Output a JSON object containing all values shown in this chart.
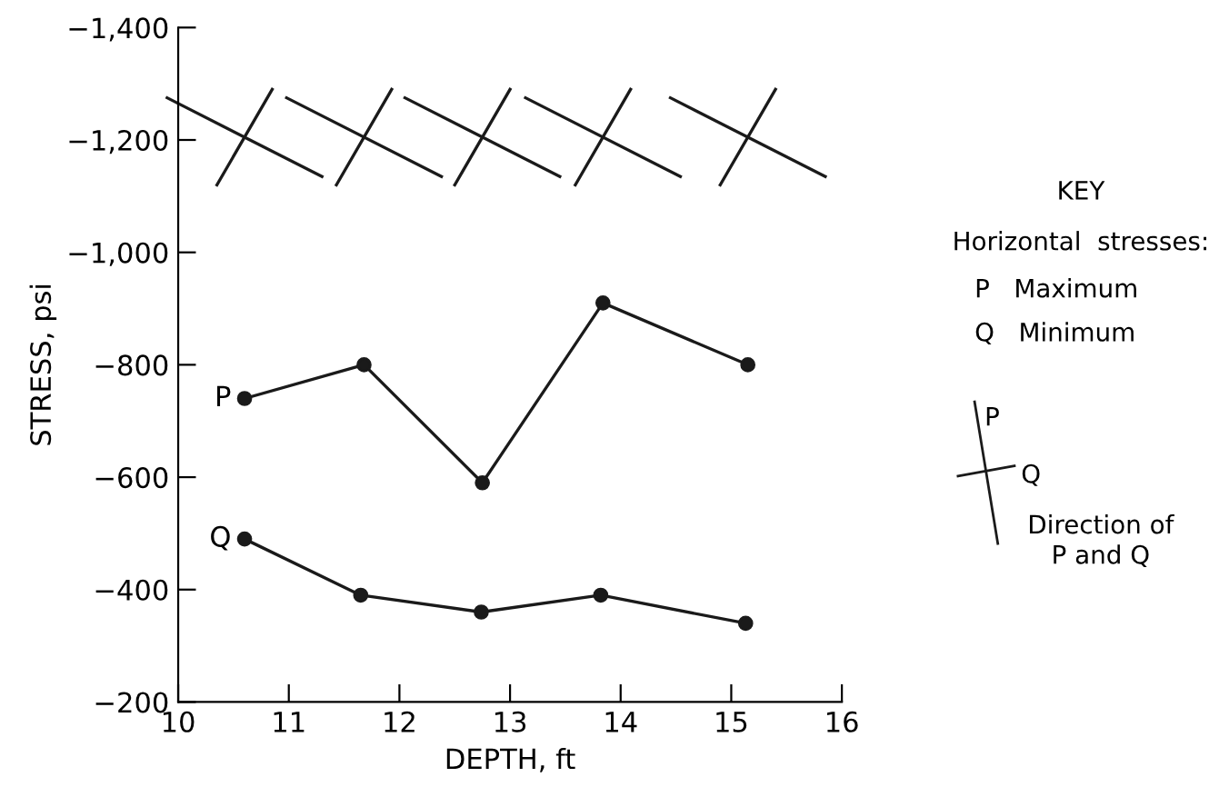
{
  "chart_data": {
    "type": "line",
    "xlabel": "DEPTH, ft",
    "ylabel": "STRESS, psi",
    "series": [
      {
        "name": "P",
        "color": "#1a1a1a",
        "x": [
          10.6,
          11.68,
          12.75,
          13.84,
          15.15
        ],
        "values": [
          -740,
          -800,
          -590,
          -910,
          -800
        ]
      },
      {
        "name": "Q",
        "color": "#1a1a1a",
        "x": [
          10.6,
          11.65,
          12.74,
          13.82,
          15.13
        ],
        "values": [
          -490,
          -390,
          -360,
          -390,
          -340
        ]
      }
    ],
    "xlim": [
      10,
      16
    ],
    "xticks": [
      10,
      11,
      12,
      13,
      14,
      15,
      16
    ],
    "ylim": [
      -200,
      -1400
    ],
    "yticks": [
      {
        "value": -200,
        "label": "−200"
      },
      {
        "value": -400,
        "label": "−400"
      },
      {
        "value": -600,
        "label": "−600"
      },
      {
        "value": -800,
        "label": "−800"
      },
      {
        "value": -1000,
        "label": "−1,000"
      },
      {
        "value": -1200,
        "label": "−1,200"
      },
      {
        "value": -1400,
        "label": "−1,400"
      }
    ],
    "annotations": [
      "KEY",
      "Horizontal  stresses:",
      "P   Maximum",
      "Q   Minimum",
      "P",
      "Q",
      "Direction of\nP and Q"
    ],
    "marker": "circle",
    "line_style": "solid",
    "grid": false,
    "legend": false
  }
}
